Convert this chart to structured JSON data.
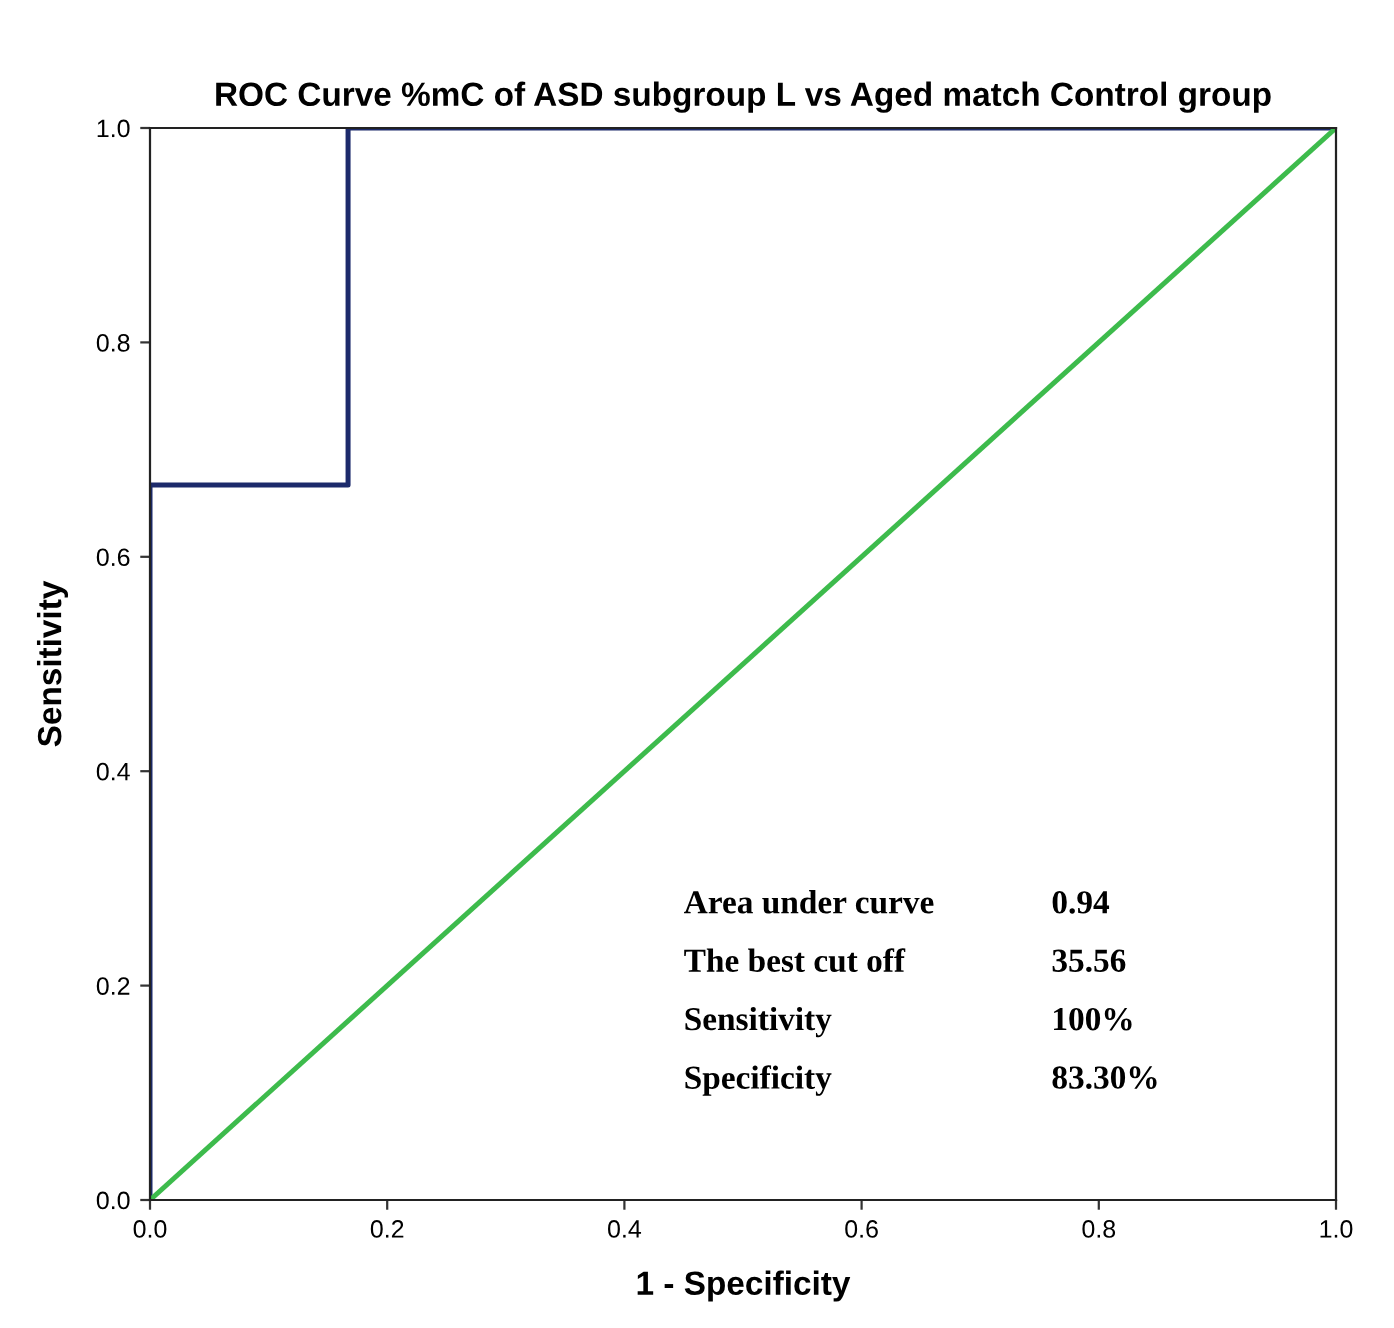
{
  "chart_data": {
    "type": "line",
    "title": "ROC Curve %mC of ASD subgroup L vs Aged match Control group",
    "xlabel": "1 - Specificity",
    "ylabel": "Sensitivity",
    "series": [
      {
        "color": "#1c2a6b",
        "x": [
          0,
          0,
          0.167,
          0.167,
          1
        ],
        "values": [
          0,
          0.667,
          0.667,
          1,
          1
        ]
      },
      {
        "color": "#3dbb4c",
        "x": [
          0,
          1
        ],
        "values": [
          0,
          1
        ]
      }
    ],
    "xlim": [
      0,
      1
    ],
    "ylim": [
      0,
      1
    ],
    "xticks": [
      {
        "value": 0,
        "label": "0.0"
      },
      {
        "value": 0.2,
        "label": "0.2"
      },
      {
        "value": 0.4,
        "label": "0.4"
      },
      {
        "value": 0.6,
        "label": "0.6"
      },
      {
        "value": 0.8,
        "label": "0.8"
      },
      {
        "value": 1,
        "label": "1.0"
      }
    ],
    "yticks": [
      {
        "value": 0,
        "label": "0.0"
      },
      {
        "value": 0.2,
        "label": "0.2"
      },
      {
        "value": 0.4,
        "label": "0.4"
      },
      {
        "value": 0.6,
        "label": "0.6"
      },
      {
        "value": 0.8,
        "label": "0.8"
      },
      {
        "value": 1,
        "label": "1.0"
      }
    ],
    "annotations": [
      "Area under curve",
      "0.94",
      "The best cut off",
      "35.56",
      "Sensitivity",
      "100%",
      "Specificity",
      "83.30%"
    ],
    "grid": false,
    "legend": false,
    "marker": "none",
    "line_style": "solid"
  }
}
